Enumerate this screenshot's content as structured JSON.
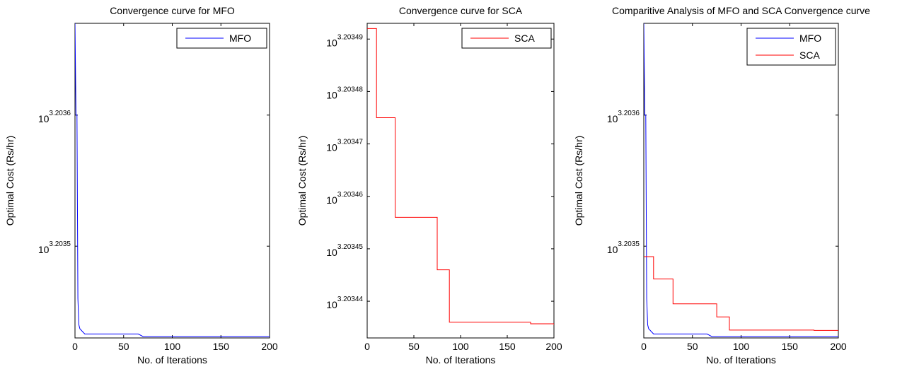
{
  "chart_data": [
    {
      "type": "line",
      "title": "Convergence curve for MFO",
      "xlabel": "No. of Iterations",
      "ylabel": "Optimal Cost (Rs/hr)",
      "xlim": [
        0,
        200
      ],
      "y_scale": "log10",
      "ylim_log10": [
        3.20343,
        3.20367
      ],
      "x_ticks": [
        "0",
        "50",
        "100",
        "150",
        "200"
      ],
      "y_ticks": [
        {
          "base": "10",
          "exp": "3.2035",
          "log10": 3.2035
        },
        {
          "base": "10",
          "exp": "3.2036",
          "log10": 3.2036
        }
      ],
      "legend": "top-right",
      "series": [
        {
          "name": "MFO",
          "color": "#0000ff",
          "x": [
            0,
            1,
            2,
            3,
            4,
            5,
            10,
            65,
            70,
            200
          ],
          "log10_y": [
            3.20367,
            3.2036,
            3.2036,
            3.20346,
            3.20344,
            3.203437,
            3.203433,
            3.203433,
            3.203431,
            3.203431
          ]
        }
      ]
    },
    {
      "type": "line",
      "title": "Convergence curve for SCA",
      "xlabel": "No. of Iterations",
      "ylabel": "Optimal Cost (Rs/hr)",
      "xlim": [
        0,
        200
      ],
      "y_scale": "log10",
      "ylim_log10": [
        3.203433,
        3.203493
      ],
      "x_ticks": [
        "0",
        "50",
        "100",
        "150",
        "200"
      ],
      "y_ticks": [
        {
          "base": "10",
          "exp": "3.20344",
          "log10": 3.20344
        },
        {
          "base": "10",
          "exp": "3.20345",
          "log10": 3.20345
        },
        {
          "base": "10",
          "exp": "3.20346",
          "log10": 3.20346
        },
        {
          "base": "10",
          "exp": "3.20347",
          "log10": 3.20347
        },
        {
          "base": "10",
          "exp": "3.20348",
          "log10": 3.20348
        },
        {
          "base": "10",
          "exp": "3.20349",
          "log10": 3.20349
        }
      ],
      "legend": "top-right",
      "series": [
        {
          "name": "SCA",
          "color": "#ff0000",
          "x": [
            0,
            10,
            30,
            75,
            88,
            175,
            200
          ],
          "log10_y": [
            3.203492,
            3.203475,
            3.203456,
            3.203446,
            3.203436,
            3.2034357,
            3.2034355
          ],
          "step": true
        }
      ]
    },
    {
      "type": "line",
      "title": "Comparitive Analysis of MFO and SCA Convergence curve",
      "xlabel": "No. of Iterations",
      "ylabel": "Optimal Cost (Rs/hr)",
      "xlim": [
        0,
        200
      ],
      "y_scale": "log10",
      "ylim_log10": [
        3.20343,
        3.20367
      ],
      "x_ticks": [
        "0",
        "50",
        "100",
        "150",
        "200"
      ],
      "y_ticks": [
        {
          "base": "10",
          "exp": "3.2035",
          "log10": 3.2035
        },
        {
          "base": "10",
          "exp": "3.2036",
          "log10": 3.2036
        }
      ],
      "legend": "top-right",
      "series": [
        {
          "name": "MFO",
          "color": "#0000ff",
          "x": [
            0,
            1,
            2,
            3,
            4,
            5,
            10,
            65,
            70,
            200
          ],
          "log10_y": [
            3.20367,
            3.2036,
            3.2036,
            3.20346,
            3.20344,
            3.203437,
            3.203433,
            3.203433,
            3.203431,
            3.203431
          ]
        },
        {
          "name": "SCA",
          "color": "#ff0000",
          "x": [
            0,
            10,
            30,
            75,
            88,
            175,
            200
          ],
          "log10_y": [
            3.203492,
            3.203475,
            3.203456,
            3.203446,
            3.203436,
            3.2034357,
            3.2034355
          ],
          "step": true
        }
      ]
    }
  ]
}
